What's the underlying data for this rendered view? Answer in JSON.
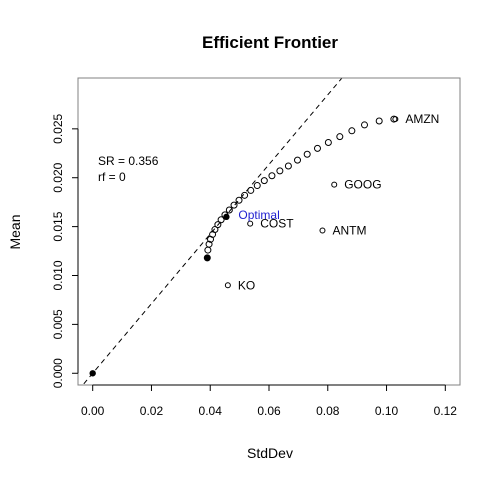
{
  "chart_data": {
    "type": "scatter",
    "title": "Efficient Frontier",
    "xlabel": "StdDev",
    "ylabel": "Mean",
    "xlim": [
      -0.005,
      0.125
    ],
    "ylim": [
      -0.0012,
      0.0302
    ],
    "xticks": [
      0.0,
      0.02,
      0.04,
      0.06,
      0.08,
      0.1,
      0.12
    ],
    "xtick_labels": [
      "0.00",
      "0.02",
      "0.04",
      "0.06",
      "0.08",
      "0.10",
      "0.12"
    ],
    "yticks": [
      0.0,
      0.005,
      0.01,
      0.015,
      0.02,
      0.025
    ],
    "ytick_labels": [
      "0.000",
      "0.005",
      "0.010",
      "0.015",
      "0.020",
      "0.025"
    ],
    "grid": false,
    "frontier": [
      {
        "x": 0.039,
        "y": 0.0118
      },
      {
        "x": 0.0392,
        "y": 0.0126
      },
      {
        "x": 0.0396,
        "y": 0.0132
      },
      {
        "x": 0.0401,
        "y": 0.0137
      },
      {
        "x": 0.0408,
        "y": 0.0142
      },
      {
        "x": 0.0416,
        "y": 0.0147
      },
      {
        "x": 0.0426,
        "y": 0.0152
      },
      {
        "x": 0.0437,
        "y": 0.0157
      },
      {
        "x": 0.045,
        "y": 0.0162
      },
      {
        "x": 0.0465,
        "y": 0.0167
      },
      {
        "x": 0.0481,
        "y": 0.0172
      },
      {
        "x": 0.0498,
        "y": 0.0177
      },
      {
        "x": 0.0517,
        "y": 0.0182
      },
      {
        "x": 0.0538,
        "y": 0.0187
      },
      {
        "x": 0.056,
        "y": 0.0192
      },
      {
        "x": 0.0584,
        "y": 0.0197
      },
      {
        "x": 0.061,
        "y": 0.0202
      },
      {
        "x": 0.0637,
        "y": 0.0207
      },
      {
        "x": 0.0666,
        "y": 0.0212
      },
      {
        "x": 0.0697,
        "y": 0.0218
      },
      {
        "x": 0.073,
        "y": 0.0224
      },
      {
        "x": 0.0765,
        "y": 0.023
      },
      {
        "x": 0.0802,
        "y": 0.0236
      },
      {
        "x": 0.0841,
        "y": 0.0242
      },
      {
        "x": 0.0882,
        "y": 0.0248
      },
      {
        "x": 0.0925,
        "y": 0.0254
      },
      {
        "x": 0.0975,
        "y": 0.0258
      },
      {
        "x": 0.1025,
        "y": 0.026
      }
    ],
    "min_variance": {
      "x": 0.039,
      "y": 0.0118
    },
    "tangency": {
      "x": 0.0455,
      "y": 0.016,
      "label": "Optimal"
    },
    "risk_free": {
      "x": 0.0,
      "y": 0.0
    },
    "capital_market_line": {
      "slope": 0.356,
      "intercept": 0
    },
    "assets": [
      {
        "name": "AMZN",
        "x": 0.103,
        "y": 0.026
      },
      {
        "name": "GOOG",
        "x": 0.0822,
        "y": 0.0193
      },
      {
        "name": "COST",
        "x": 0.0536,
        "y": 0.0153
      },
      {
        "name": "ANTM",
        "x": 0.0782,
        "y": 0.0146
      },
      {
        "name": "KO",
        "x": 0.046,
        "y": 0.009
      }
    ],
    "annotations": [
      "SR = 0.356",
      "rf = 0"
    ],
    "colors": {
      "points": "#000000",
      "optimal_label": "#1f1fd0",
      "cml": "#000000"
    }
  }
}
